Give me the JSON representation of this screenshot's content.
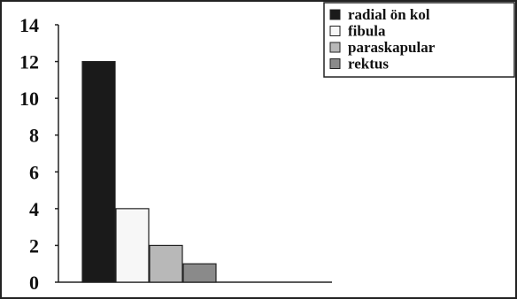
{
  "chart_data": {
    "type": "bar",
    "categories": [
      "radial ön kol",
      "fibula",
      "paraskapular",
      "rektus"
    ],
    "values": [
      12,
      4,
      2,
      1
    ],
    "series": [
      {
        "name": "radial ön kol",
        "value": 12,
        "color": "#1a1a1a"
      },
      {
        "name": "fibula",
        "value": 4,
        "color": "#f7f7f7"
      },
      {
        "name": "paraskapular",
        "value": 2,
        "color": "#b8b8b8"
      },
      {
        "name": "rektus",
        "value": 1,
        "color": "#8a8a8a"
      }
    ],
    "title": "",
    "xlabel": "",
    "ylabel": "",
    "ylim": [
      0,
      14
    ],
    "y_ticks": [
      "0",
      "2",
      "4",
      "6",
      "8",
      "10",
      "12",
      "14"
    ],
    "grid": false,
    "legend_position": "top-right"
  }
}
